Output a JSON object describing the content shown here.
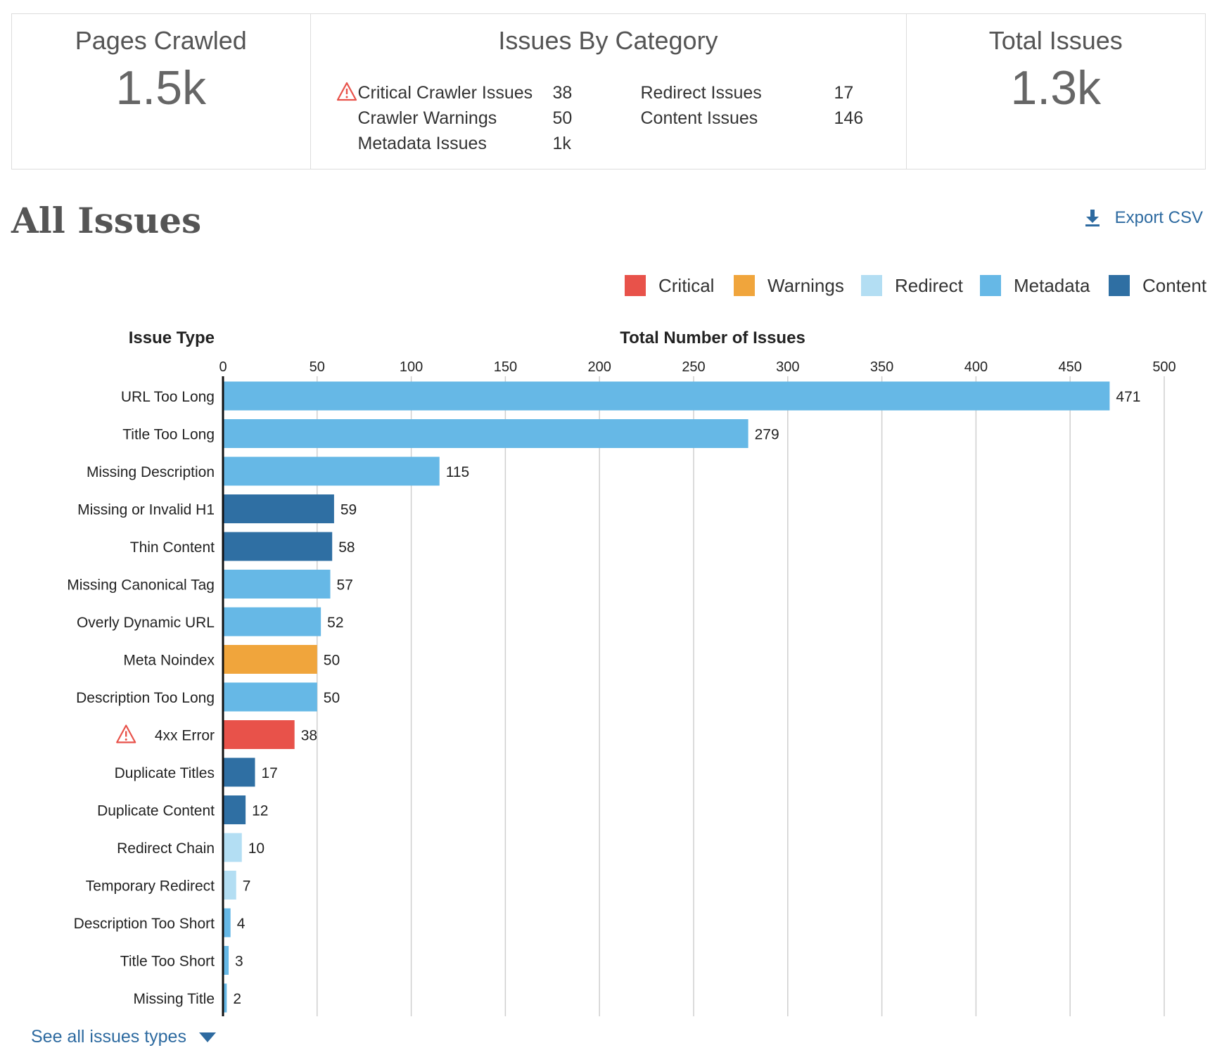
{
  "summary": {
    "pages_crawled": {
      "title": "Pages Crawled",
      "value": "1.5k"
    },
    "issues_by_category": {
      "title": "Issues By Category",
      "items": [
        {
          "label": "Critical Crawler Issues",
          "value": "38",
          "warning": true
        },
        {
          "label": "Crawler Warnings",
          "value": "50",
          "warning": false
        },
        {
          "label": "Metadata Issues",
          "value": "1k",
          "warning": false
        },
        {
          "label": "Redirect Issues",
          "value": "17",
          "warning": false
        },
        {
          "label": "Content Issues",
          "value": "146",
          "warning": false
        }
      ]
    },
    "total_issues": {
      "title": "Total Issues",
      "value": "1.3k"
    }
  },
  "section": {
    "title": "All Issues",
    "export_label": "Export CSV",
    "see_all_label": "See all issues types"
  },
  "legend": [
    {
      "label": "Critical",
      "color": "#e8524a"
    },
    {
      "label": "Warnings",
      "color": "#f0a53c"
    },
    {
      "label": "Redirect",
      "color": "#b3def3"
    },
    {
      "label": "Metadata",
      "color": "#66b8e6"
    },
    {
      "label": "Content",
      "color": "#2f6fa3"
    }
  ],
  "chart_data": {
    "type": "bar",
    "orientation": "horizontal",
    "ylabel": "Issue Type",
    "xlabel": "Total Number of Issues",
    "xlim": [
      0,
      500
    ],
    "xticks": [
      0,
      50,
      100,
      150,
      200,
      250,
      300,
      350,
      400,
      450,
      500
    ],
    "grid": true,
    "legend_position": "top-right",
    "categories": [
      "URL Too Long",
      "Title Too Long",
      "Missing Description",
      "Missing or Invalid H1",
      "Thin Content",
      "Missing Canonical Tag",
      "Overly Dynamic URL",
      "Meta Noindex",
      "Description Too Long",
      "4xx Error",
      "Duplicate Titles",
      "Duplicate Content",
      "Redirect Chain",
      "Temporary Redirect",
      "Description Too Short",
      "Title Too Short",
      "Missing Title"
    ],
    "values": [
      471,
      279,
      115,
      59,
      58,
      57,
      52,
      50,
      50,
      38,
      17,
      12,
      10,
      7,
      4,
      3,
      2
    ],
    "bar_category": [
      "Metadata",
      "Metadata",
      "Metadata",
      "Content",
      "Content",
      "Metadata",
      "Metadata",
      "Warnings",
      "Metadata",
      "Critical",
      "Content",
      "Content",
      "Redirect",
      "Redirect",
      "Metadata",
      "Metadata",
      "Metadata"
    ],
    "critical_marker": [
      false,
      false,
      false,
      false,
      false,
      false,
      false,
      false,
      false,
      true,
      false,
      false,
      false,
      false,
      false,
      false,
      false
    ]
  }
}
